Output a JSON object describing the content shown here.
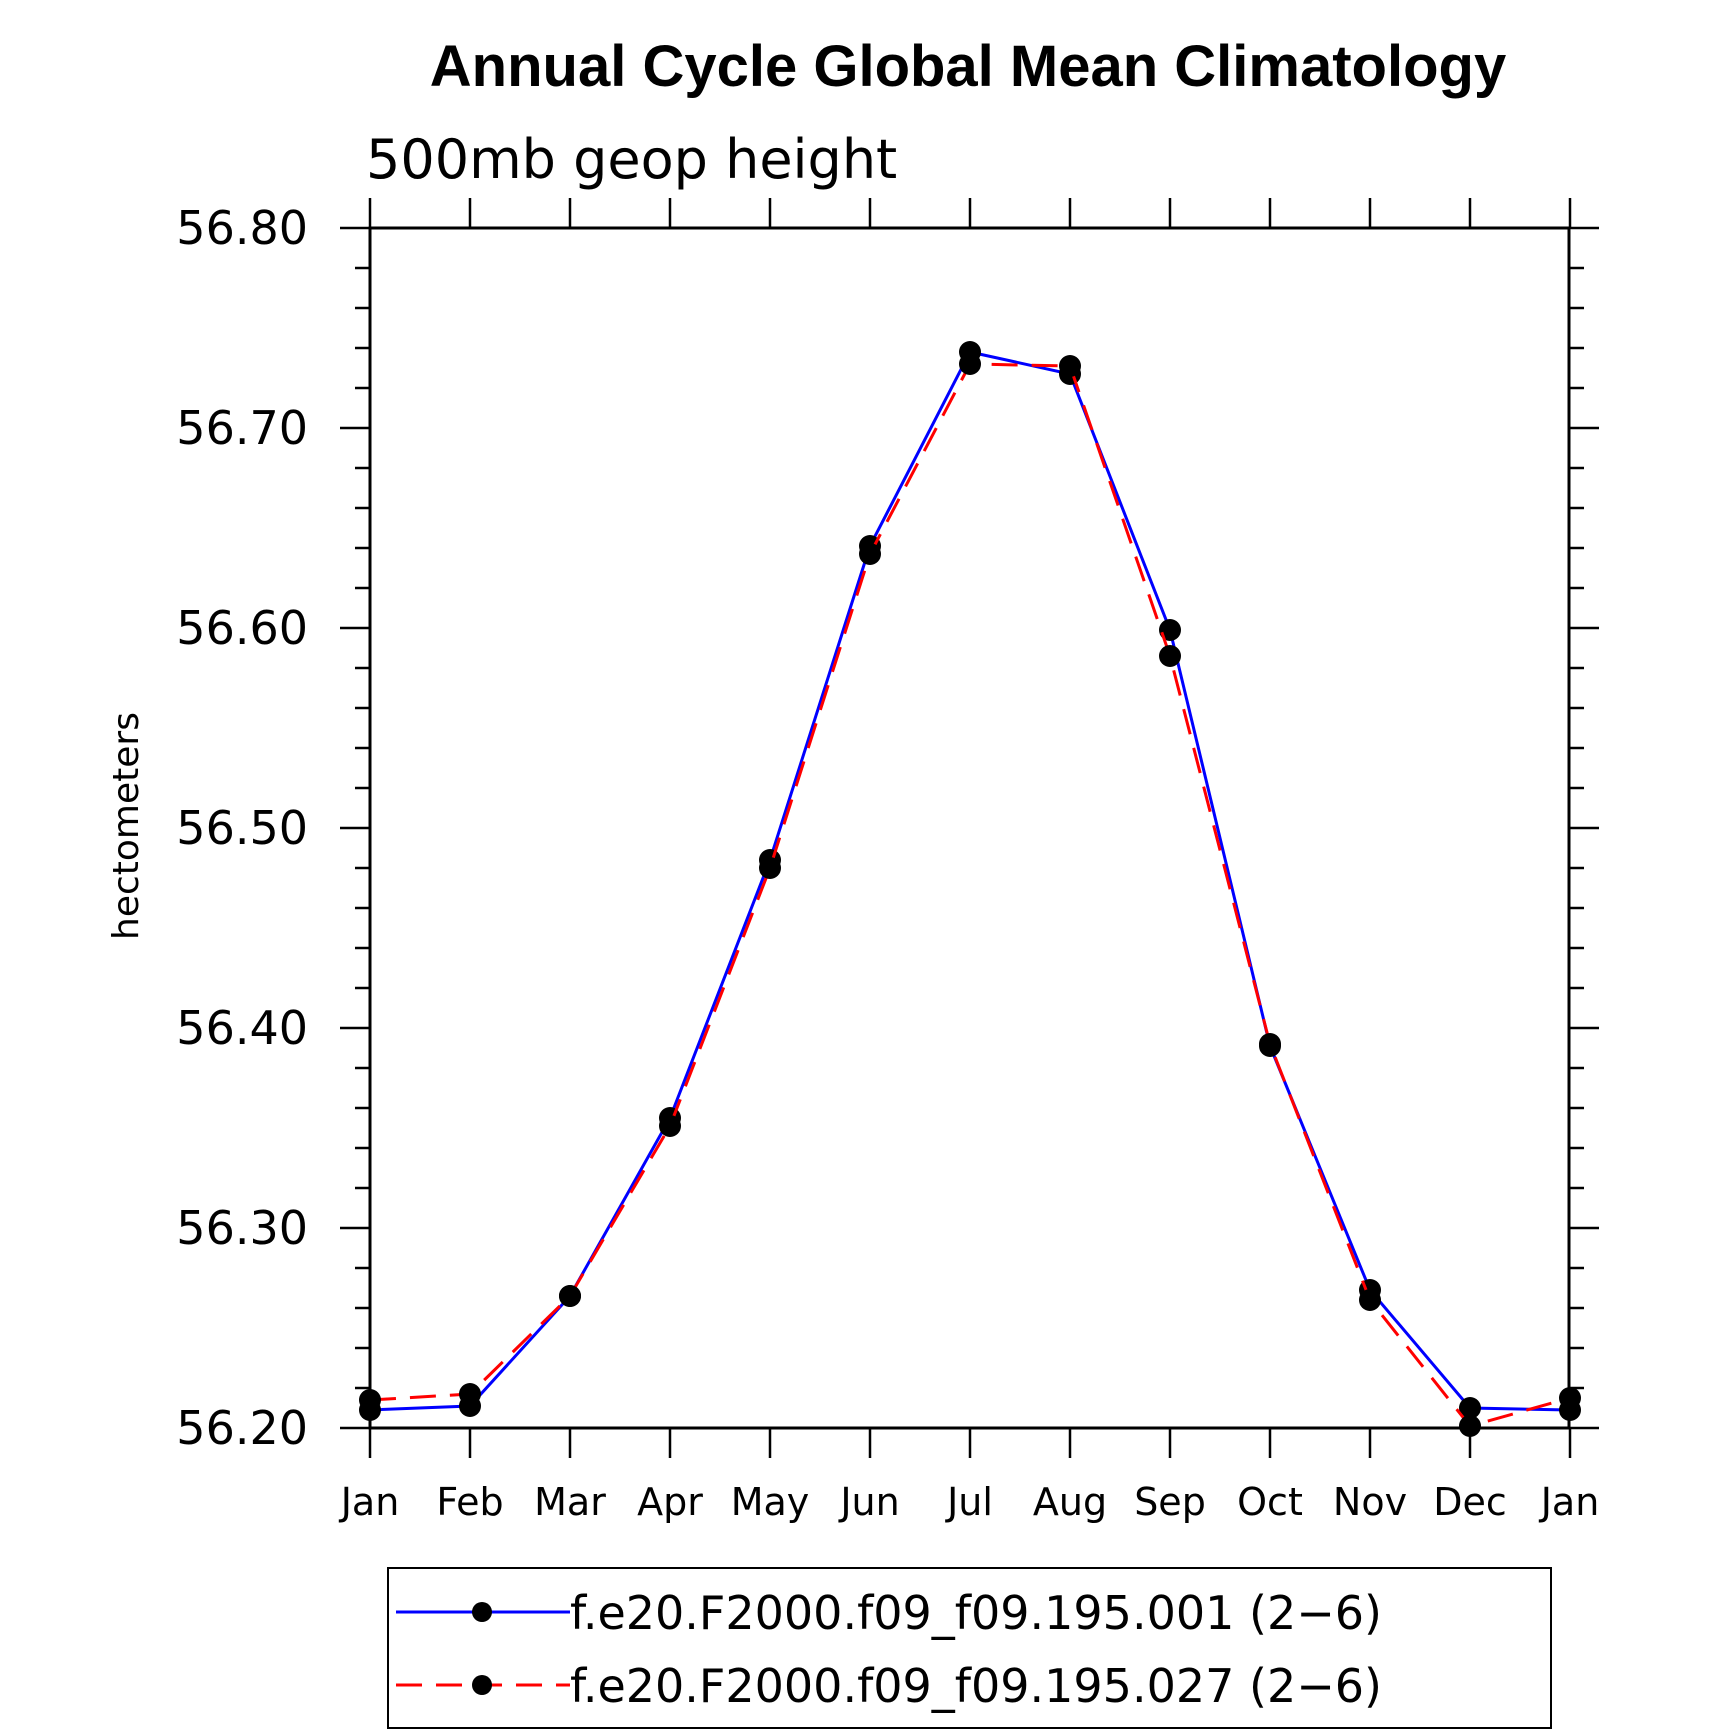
{
  "chart_data": {
    "type": "line",
    "title": "Annual Cycle Global Mean Climatology",
    "subtitle": "500mb geop height",
    "xlabel": "",
    "ylabel": "hectometers",
    "categories": [
      "Jan",
      "Feb",
      "Mar",
      "Apr",
      "May",
      "Jun",
      "Jul",
      "Aug",
      "Sep",
      "Oct",
      "Nov",
      "Dec",
      "Jan"
    ],
    "ylim": [
      56.2,
      56.8
    ],
    "yticks": [
      "56.20",
      "56.30",
      "56.40",
      "56.50",
      "56.60",
      "56.70",
      "56.80"
    ],
    "grid": false,
    "legend_position": "bottom",
    "series": [
      {
        "name": "f.e20.F2000.f09_f09.195.001 (2−6)",
        "color": "#0000ff",
        "dash": "solid",
        "values": [
          56.209,
          56.211,
          56.266,
          56.355,
          56.484,
          56.641,
          56.738,
          56.727,
          56.599,
          56.391,
          56.269,
          56.21,
          56.209
        ]
      },
      {
        "name": "f.e20.F2000.f09_f09.195.027 (2−6)",
        "color": "#ff0000",
        "dash": "dashed",
        "values": [
          56.214,
          56.217,
          56.266,
          56.351,
          56.48,
          56.637,
          56.732,
          56.731,
          56.586,
          56.392,
          56.264,
          56.201,
          56.215
        ]
      }
    ]
  }
}
